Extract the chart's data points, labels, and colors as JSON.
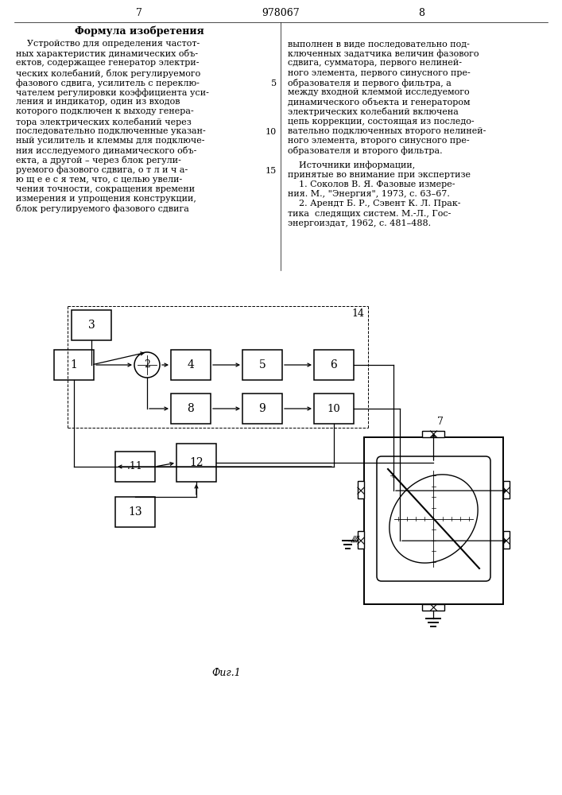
{
  "title": "978067",
  "page_left": "7",
  "page_right": "8",
  "fig_label": "Фиг.1",
  "bg_color": "#ffffff",
  "formula_title": "Формула изобретения",
  "left_lines": [
    "    Устройство для определения частот-",
    "ных характеристик динамических объ-",
    "ектов, содержащее генератор электри-",
    "ческих колебаний, блок регулируемого",
    "фазового сдвига, усилитель с переклю-",
    "чателем регулировки коэффициента уси-",
    "ления и индикатор, один из входов",
    "которого подключен к выходу генера-",
    "тора электрических колебаний через",
    "последовательно подключенные указан-",
    "ный усилитель и клеммы для подключе-",
    "ния исследуемого динамического объ-",
    "екта, а другой – через блок регули-",
    "руемого фазового сдвига, о т л и ч а-",
    "ю щ е е с я тем, что, с целью увели-",
    "чения точности, сокращения времени",
    "измерения и упрощения конструкции,",
    "блок регулируемого фазового сдвига"
  ],
  "line_numbers": {
    "4": "5",
    "9": "10",
    "13": "15"
  },
  "right_lines": [
    "выполнен в виде последовательно под-",
    "ключенных задатчика величин фазового",
    "сдвига, сумматора, первого нелиней-",
    "ного элемента, первого синусного пре-",
    "образователя и первого фильтра, а",
    "между входной клеммой исследуемого",
    "динамического объекта и генератором",
    "электрических колебаний включена",
    "цепь коррекции, состоящая из последо-",
    "вательно подключенных второго нелиней-",
    "ного элемента, второго синусного пре-",
    "образователя и второго фильтра."
  ],
  "src_header1": "    Источники информации,",
  "src_header2": "принятые во внимание при экспертизе",
  "src1_lines": [
    "    1. Соколов В. Я. Фазовые измере-",
    "ния. М., \"Энергия\", 1973, с. 63–67."
  ],
  "src2_lines": [
    "    2. Арендт Б. Р., Сэвент К. Л. Прак-",
    "тика  следящих систем. М.-Л., Гос-",
    "энергоиздат, 1962, с. 481–488."
  ]
}
